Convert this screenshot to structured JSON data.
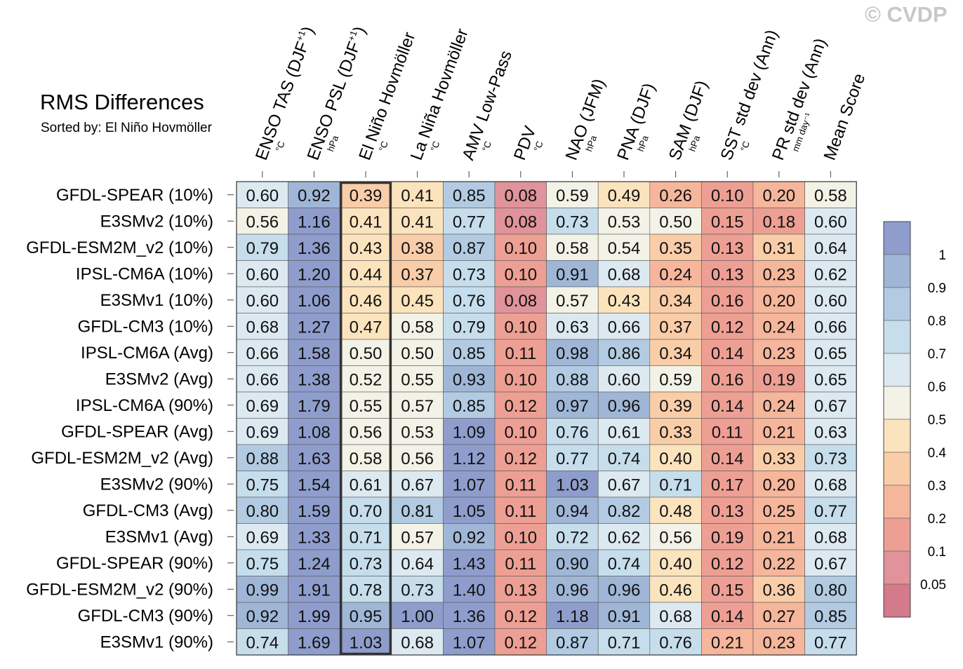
{
  "title": "RMS Differences",
  "subtitle": "Sorted by: El Niño Hovmöller",
  "watermark": "© CVDP",
  "chart_data": {
    "type": "heatmap",
    "highlighted_column": "El Niño Hovmöller",
    "columns": [
      {
        "label": "ENSO TAS (DJF",
        "sup": "+1",
        "close": ")",
        "unit": "°C"
      },
      {
        "label": "ENSO PSL (DJF",
        "sup": "+1",
        "close": ")",
        "unit": "hPa"
      },
      {
        "label": "El Niño Hovmöller",
        "sup": "",
        "close": "",
        "unit": "°C"
      },
      {
        "label": "La Niña Hovmöller",
        "sup": "",
        "close": "",
        "unit": "°C"
      },
      {
        "label": "AMV Low-Pass",
        "sup": "",
        "close": "",
        "unit": "°C"
      },
      {
        "label": "PDV",
        "sup": "",
        "close": "",
        "unit": "°C"
      },
      {
        "label": "NAO (JFM)",
        "sup": "",
        "close": "",
        "unit": "hPa"
      },
      {
        "label": "PNA (DJF)",
        "sup": "",
        "close": "",
        "unit": "hPa"
      },
      {
        "label": "SAM (DJF)",
        "sup": "",
        "close": "",
        "unit": "hPa"
      },
      {
        "label": "SST std dev (Ann)",
        "sup": "",
        "close": "",
        "unit": "°C"
      },
      {
        "label": "PR std dev (Ann)",
        "sup": "",
        "close": "",
        "unit": "mm day⁻¹"
      },
      {
        "label": "Mean Score",
        "sup": "",
        "close": "",
        "unit": ""
      }
    ],
    "rows": [
      "GFDL-SPEAR (10%)",
      "E3SMv2 (10%)",
      "GFDL-ESM2M_v2 (10%)",
      "IPSL-CM6A (10%)",
      "E3SMv1 (10%)",
      "GFDL-CM3 (10%)",
      "IPSL-CM6A (Avg)",
      "E3SMv2 (Avg)",
      "IPSL-CM6A (90%)",
      "GFDL-SPEAR (Avg)",
      "GFDL-ESM2M_v2 (Avg)",
      "E3SMv2 (90%)",
      "GFDL-CM3 (Avg)",
      "E3SMv1 (Avg)",
      "GFDL-SPEAR (90%)",
      "GFDL-ESM2M_v2 (90%)",
      "GFDL-CM3 (90%)",
      "E3SMv1 (90%)"
    ],
    "values": [
      [
        "0.60",
        "0.92",
        "0.39",
        "0.41",
        "0.85",
        "0.08",
        "0.59",
        "0.49",
        "0.26",
        "0.10",
        "0.20",
        "0.58"
      ],
      [
        "0.56",
        "1.16",
        "0.41",
        "0.41",
        "0.77",
        "0.08",
        "0.73",
        "0.53",
        "0.50",
        "0.15",
        "0.18",
        "0.60"
      ],
      [
        "0.79",
        "1.36",
        "0.43",
        "0.38",
        "0.87",
        "0.10",
        "0.58",
        "0.54",
        "0.35",
        "0.13",
        "0.31",
        "0.64"
      ],
      [
        "0.60",
        "1.20",
        "0.44",
        "0.37",
        "0.73",
        "0.10",
        "0.91",
        "0.68",
        "0.24",
        "0.13",
        "0.23",
        "0.62"
      ],
      [
        "0.60",
        "1.06",
        "0.46",
        "0.45",
        "0.76",
        "0.08",
        "0.57",
        "0.43",
        "0.34",
        "0.16",
        "0.20",
        "0.60"
      ],
      [
        "0.68",
        "1.27",
        "0.47",
        "0.58",
        "0.79",
        "0.10",
        "0.63",
        "0.66",
        "0.37",
        "0.12",
        "0.24",
        "0.66"
      ],
      [
        "0.66",
        "1.58",
        "0.50",
        "0.50",
        "0.85",
        "0.11",
        "0.98",
        "0.86",
        "0.34",
        "0.14",
        "0.23",
        "0.65"
      ],
      [
        "0.66",
        "1.38",
        "0.52",
        "0.55",
        "0.93",
        "0.10",
        "0.88",
        "0.60",
        "0.59",
        "0.16",
        "0.19",
        "0.65"
      ],
      [
        "0.69",
        "1.79",
        "0.55",
        "0.57",
        "0.85",
        "0.12",
        "0.97",
        "0.96",
        "0.39",
        "0.14",
        "0.24",
        "0.67"
      ],
      [
        "0.69",
        "1.08",
        "0.56",
        "0.53",
        "1.09",
        "0.10",
        "0.76",
        "0.61",
        "0.33",
        "0.11",
        "0.21",
        "0.63"
      ],
      [
        "0.88",
        "1.63",
        "0.58",
        "0.56",
        "1.12",
        "0.12",
        "0.77",
        "0.74",
        "0.40",
        "0.14",
        "0.33",
        "0.73"
      ],
      [
        "0.75",
        "1.54",
        "0.61",
        "0.67",
        "1.07",
        "0.11",
        "1.03",
        "0.67",
        "0.71",
        "0.17",
        "0.20",
        "0.68"
      ],
      [
        "0.80",
        "1.59",
        "0.70",
        "0.81",
        "1.05",
        "0.11",
        "0.94",
        "0.82",
        "0.48",
        "0.13",
        "0.25",
        "0.77"
      ],
      [
        "0.69",
        "1.33",
        "0.71",
        "0.57",
        "0.92",
        "0.10",
        "0.72",
        "0.62",
        "0.56",
        "0.19",
        "0.21",
        "0.68"
      ],
      [
        "0.75",
        "1.24",
        "0.73",
        "0.64",
        "1.43",
        "0.11",
        "0.90",
        "0.74",
        "0.40",
        "0.12",
        "0.22",
        "0.67"
      ],
      [
        "0.99",
        "1.91",
        "0.78",
        "0.73",
        "1.40",
        "0.13",
        "0.96",
        "0.96",
        "0.46",
        "0.15",
        "0.36",
        "0.80"
      ],
      [
        "0.92",
        "1.99",
        "0.95",
        "1.00",
        "1.36",
        "0.12",
        "1.18",
        "0.91",
        "0.68",
        "0.14",
        "0.27",
        "0.85"
      ],
      [
        "0.74",
        "1.69",
        "1.03",
        "0.68",
        "1.07",
        "0.12",
        "0.87",
        "0.71",
        "0.76",
        "0.21",
        "0.23",
        "0.77"
      ]
    ],
    "colorbar": {
      "labels": [
        "1",
        "0.9",
        "0.8",
        "0.7",
        "0.6",
        "0.5",
        "0.4",
        "0.3",
        "0.2",
        "0.1",
        "0.05"
      ],
      "bounds": [
        0.05,
        0.1,
        0.2,
        0.3,
        0.4,
        0.5,
        0.6,
        0.7,
        0.8,
        0.9,
        1.0
      ],
      "colors": [
        "#d57a8a",
        "#e0939a",
        "#ee9f94",
        "#f5b69c",
        "#f9cda8",
        "#fbe3bd",
        "#f3f2e6",
        "#dde9f1",
        "#c6ddec",
        "#b2cbe2",
        "#a0b6d6",
        "#8e9dcc"
      ]
    }
  }
}
